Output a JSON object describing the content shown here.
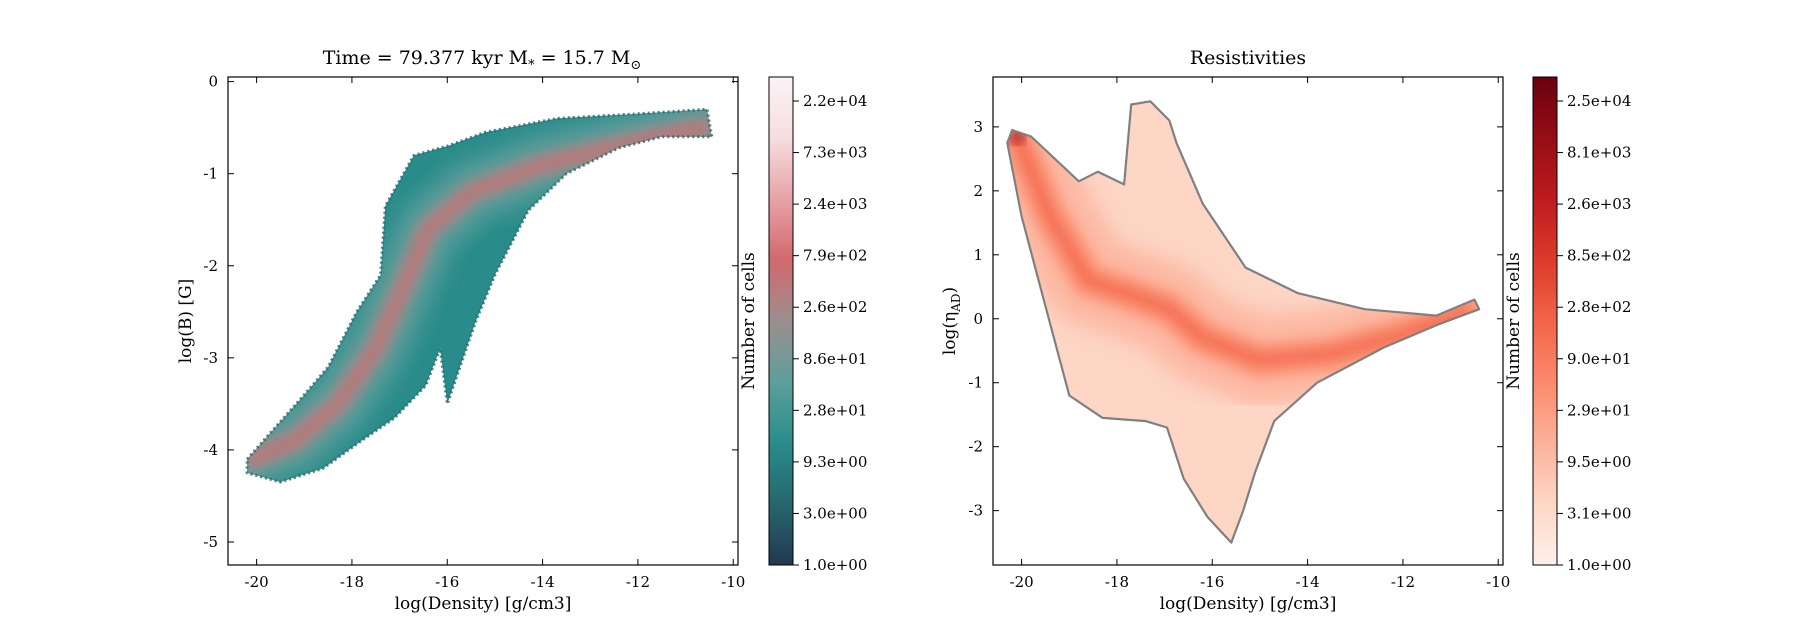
{
  "chart_data": [
    {
      "type": "heatmap",
      "title": "Time = 79.377 kyr    M$_*$ = 15.7 M$_\\odot$",
      "title_text": "Time = 79.377 kyr    M",
      "title_sub_star": "*",
      "title_mid": " = 15.7 M",
      "title_sub_sun": "⊙",
      "xlabel": "log(Density) [g/cm3]",
      "ylabel": "log(B) [G]",
      "xlim": [
        -20.6,
        -9.9
      ],
      "ylim": [
        -5.25,
        0.05
      ],
      "xticks": [
        -20,
        -18,
        -16,
        -14,
        -12,
        -10
      ],
      "xtick_labels": [
        "-20",
        "-18",
        "-16",
        "-14",
        "-12",
        "-10"
      ],
      "yticks": [
        0,
        -1,
        -2,
        -3,
        -4,
        -5
      ],
      "ytick_labels": [
        "0",
        "-1",
        "-2",
        "-3",
        "-4",
        "-5"
      ],
      "colorbar": {
        "label": "Number of cells",
        "scale": "log",
        "ticks": [
          "1.0e+00",
          "3.0e+00",
          "9.3e+00",
          "2.8e+01",
          "8.6e+01",
          "2.6e+02",
          "7.9e+02",
          "2.4e+03",
          "7.3e+03",
          "2.2e+04"
        ],
        "colormap": [
          "#22384f",
          "#26676e",
          "#2a8c8a",
          "#5d9f9c",
          "#9b8f8e",
          "#d1696d",
          "#e7a2a6",
          "#f6dde0",
          "#fbf3f4"
        ]
      },
      "ridge": [
        {
          "x": -20.1,
          "y": -4.1
        },
        {
          "x": -19.2,
          "y": -3.9
        },
        {
          "x": -18.3,
          "y": -3.5
        },
        {
          "x": -17.5,
          "y": -2.9
        },
        {
          "x": -16.9,
          "y": -2.2
        },
        {
          "x": -16.4,
          "y": -1.6
        },
        {
          "x": -15.5,
          "y": -1.2
        },
        {
          "x": -14.0,
          "y": -0.9
        },
        {
          "x": -12.0,
          "y": -0.65
        },
        {
          "x": -10.6,
          "y": -0.5
        }
      ],
      "outline": [
        {
          "x": -20.2,
          "y": -4.1
        },
        {
          "x": -19.6,
          "y": -3.75
        },
        {
          "x": -19.0,
          "y": -3.4
        },
        {
          "x": -18.5,
          "y": -3.1
        },
        {
          "x": -17.9,
          "y": -2.5
        },
        {
          "x": -17.4,
          "y": -2.1
        },
        {
          "x": -17.3,
          "y": -1.35
        },
        {
          "x": -16.7,
          "y": -0.8
        },
        {
          "x": -16.0,
          "y": -0.7
        },
        {
          "x": -15.2,
          "y": -0.55
        },
        {
          "x": -13.7,
          "y": -0.4
        },
        {
          "x": -12.0,
          "y": -0.35
        },
        {
          "x": -10.55,
          "y": -0.3
        },
        {
          "x": -10.45,
          "y": -0.6
        },
        {
          "x": -11.5,
          "y": -0.6
        },
        {
          "x": -12.4,
          "y": -0.72
        },
        {
          "x": -13.5,
          "y": -1.0
        },
        {
          "x": -14.3,
          "y": -1.4
        },
        {
          "x": -15.0,
          "y": -2.1
        },
        {
          "x": -15.4,
          "y": -2.6
        },
        {
          "x": -15.6,
          "y": -2.9
        },
        {
          "x": -16.0,
          "y": -3.5
        },
        {
          "x": -16.15,
          "y": -2.9
        },
        {
          "x": -16.45,
          "y": -3.3
        },
        {
          "x": -17.1,
          "y": -3.65
        },
        {
          "x": -17.8,
          "y": -3.9
        },
        {
          "x": -18.6,
          "y": -4.2
        },
        {
          "x": -19.5,
          "y": -4.35
        },
        {
          "x": -20.2,
          "y": -4.25
        }
      ]
    },
    {
      "type": "heatmap",
      "title": "Resistivities",
      "xlabel": "log(Density) [g/cm3]",
      "ylabel": "log(η",
      "ylabel_sub": "AD",
      "ylabel_end": ")",
      "xlim": [
        -20.6,
        -9.9
      ],
      "ylim": [
        -3.85,
        3.78
      ],
      "xticks": [
        -20,
        -18,
        -16,
        -14,
        -12,
        -10
      ],
      "xtick_labels": [
        "-20",
        "-18",
        "-16",
        "-14",
        "-12",
        "-10"
      ],
      "yticks": [
        3,
        2,
        1,
        0,
        -1,
        -2,
        -3
      ],
      "ytick_labels": [
        "3",
        "2",
        "1",
        "0",
        "-1",
        "-2",
        "-3"
      ],
      "colorbar": {
        "label": "Number of cells",
        "scale": "log",
        "ticks": [
          "1.0e+00",
          "3.1e+00",
          "9.5e+00",
          "2.9e+01",
          "9.0e+01",
          "2.8e+02",
          "8.5e+02",
          "2.6e+03",
          "8.1e+03",
          "2.5e+04"
        ],
        "colormap": [
          "#fff0ea",
          "#fdd6c6",
          "#fcb19a",
          "#fb8a6c",
          "#f2644a",
          "#dd3a2b",
          "#bd1b1e",
          "#960d15",
          "#6b0010"
        ]
      },
      "ridge": [
        {
          "x": -20.1,
          "y": 2.85
        },
        {
          "x": -19.4,
          "y": 1.6
        },
        {
          "x": -18.6,
          "y": 0.6
        },
        {
          "x": -17.6,
          "y": 0.35
        },
        {
          "x": -16.9,
          "y": 0.15
        },
        {
          "x": -16.2,
          "y": -0.3
        },
        {
          "x": -15.0,
          "y": -0.65
        },
        {
          "x": -13.5,
          "y": -0.55
        },
        {
          "x": -12.0,
          "y": -0.25
        },
        {
          "x": -10.7,
          "y": 0.1
        }
      ],
      "outline": [
        {
          "x": -20.2,
          "y": 2.95
        },
        {
          "x": -19.8,
          "y": 2.85
        },
        {
          "x": -19.3,
          "y": 2.5
        },
        {
          "x": -18.8,
          "y": 2.15
        },
        {
          "x": -18.4,
          "y": 2.3
        },
        {
          "x": -17.85,
          "y": 2.1
        },
        {
          "x": -17.7,
          "y": 3.35
        },
        {
          "x": -17.3,
          "y": 3.4
        },
        {
          "x": -16.9,
          "y": 3.1
        },
        {
          "x": -16.75,
          "y": 2.75
        },
        {
          "x": -16.2,
          "y": 1.8
        },
        {
          "x": -15.3,
          "y": 0.8
        },
        {
          "x": -14.2,
          "y": 0.4
        },
        {
          "x": -12.8,
          "y": 0.15
        },
        {
          "x": -11.3,
          "y": 0.05
        },
        {
          "x": -10.5,
          "y": 0.3
        },
        {
          "x": -10.4,
          "y": 0.15
        },
        {
          "x": -11.3,
          "y": -0.1
        },
        {
          "x": -12.4,
          "y": -0.45
        },
        {
          "x": -13.8,
          "y": -1.0
        },
        {
          "x": -14.7,
          "y": -1.6
        },
        {
          "x": -15.1,
          "y": -2.4
        },
        {
          "x": -15.35,
          "y": -3.0
        },
        {
          "x": -15.6,
          "y": -3.5
        },
        {
          "x": -16.1,
          "y": -3.1
        },
        {
          "x": -16.6,
          "y": -2.5
        },
        {
          "x": -16.95,
          "y": -1.7
        },
        {
          "x": -17.4,
          "y": -1.6
        },
        {
          "x": -18.3,
          "y": -1.55
        },
        {
          "x": -19.0,
          "y": -1.2
        },
        {
          "x": -19.5,
          "y": 0.2
        },
        {
          "x": -20.0,
          "y": 1.6
        },
        {
          "x": -20.3,
          "y": 2.75
        }
      ]
    }
  ]
}
